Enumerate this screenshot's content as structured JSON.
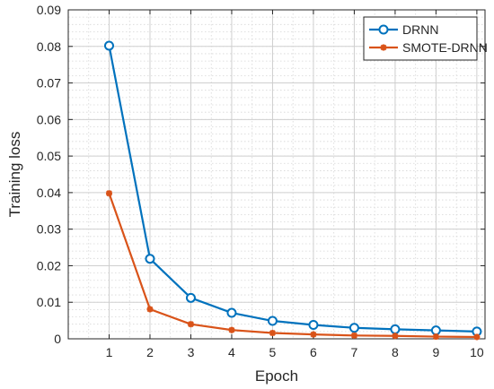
{
  "chart_data": {
    "type": "line",
    "title": "",
    "xlabel": "Epoch",
    "ylabel": "Training loss",
    "xlim": [
      0,
      10.2
    ],
    "ylim": [
      0,
      0.09
    ],
    "x_ticks": [
      1,
      2,
      3,
      4,
      5,
      6,
      7,
      8,
      9,
      10
    ],
    "y_ticks": [
      0,
      0.01,
      0.02,
      0.03,
      0.04,
      0.05,
      0.06,
      0.07,
      0.08,
      0.09
    ],
    "y_tick_labels": [
      "0",
      "0.01",
      "0.02",
      "0.03",
      "0.04",
      "0.05",
      "0.06",
      "0.07",
      "0.08",
      "0.09"
    ],
    "grid": true,
    "minor_grid": true,
    "legend_position": "top-right",
    "x": [
      1,
      2,
      3,
      4,
      5,
      6,
      7,
      8,
      9,
      10
    ],
    "series": [
      {
        "name": "DRNN",
        "color": "#0072BD",
        "marker": "circle",
        "values": [
          0.0802,
          0.0219,
          0.0112,
          0.0071,
          0.0049,
          0.0038,
          0.003,
          0.0026,
          0.0023,
          0.002
        ]
      },
      {
        "name": "SMOTE-DRNN",
        "color": "#D95319",
        "marker": "asterisk",
        "values": [
          0.0398,
          0.0081,
          0.004,
          0.0024,
          0.0016,
          0.0012,
          0.0009,
          0.0008,
          0.0006,
          0.0005
        ]
      }
    ]
  }
}
